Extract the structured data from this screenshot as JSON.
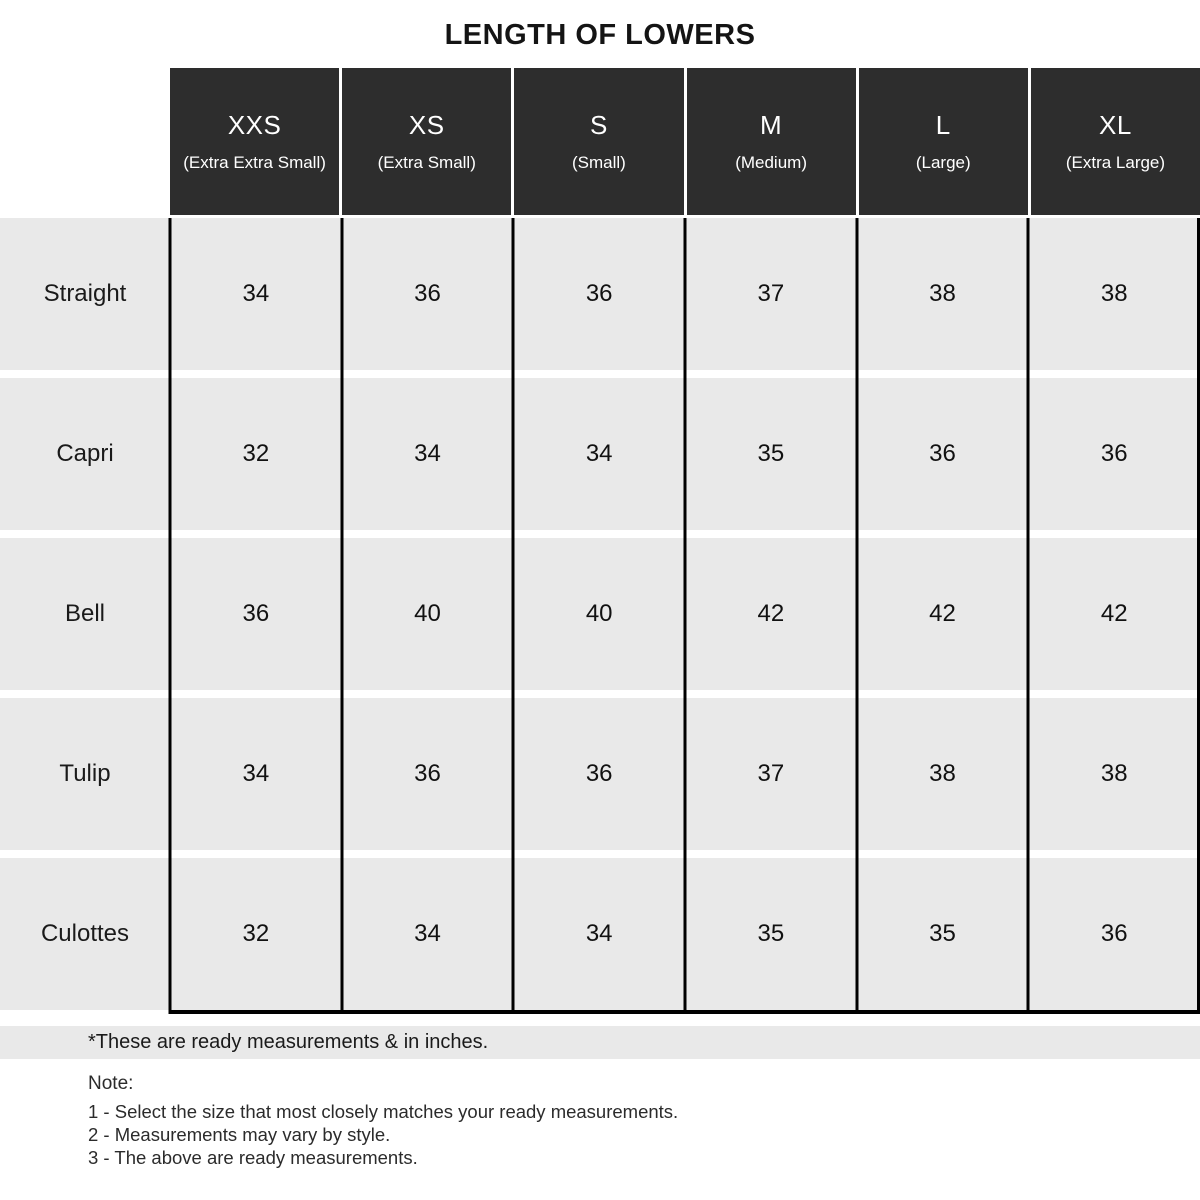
{
  "title": "LENGTH OF LOWERS",
  "table": {
    "columns": [
      {
        "size": "XXS",
        "full": "(Extra Extra Small)"
      },
      {
        "size": "XS",
        "full": "(Extra Small)"
      },
      {
        "size": "S",
        "full": "(Small)"
      },
      {
        "size": "M",
        "full": "(Medium)"
      },
      {
        "size": "L",
        "full": "(Large)"
      },
      {
        "size": "XL",
        "full": "(Extra Large)"
      }
    ],
    "rows": [
      {
        "label": "Straight",
        "values": [
          "34",
          "36",
          "36",
          "37",
          "38",
          "38"
        ]
      },
      {
        "label": "Capri",
        "values": [
          "32",
          "34",
          "34",
          "35",
          "36",
          "36"
        ]
      },
      {
        "label": "Bell",
        "values": [
          "36",
          "40",
          "40",
          "42",
          "42",
          "42"
        ]
      },
      {
        "label": "Tulip",
        "values": [
          "34",
          "36",
          "36",
          "37",
          "38",
          "38"
        ]
      },
      {
        "label": "Culottes",
        "values": [
          "32",
          "34",
          "34",
          "35",
          "35",
          "36"
        ]
      }
    ]
  },
  "footnote": "*These are ready measurements & in inches.",
  "note": {
    "heading": "Note:",
    "items": [
      "1 - Select the size that most closely matches your ready measurements.",
      "2 - Measurements may vary by style.",
      "3 - The above are ready measurements."
    ]
  },
  "colors": {
    "header_bg": "#2d2d2d",
    "header_text": "#ffffff",
    "cell_bg": "#e9e9e9",
    "grid_border": "#000000"
  },
  "chart_data": {
    "type": "table",
    "title": "LENGTH OF LOWERS",
    "unit": "inches",
    "columns": [
      "XXS (Extra Extra Small)",
      "XS (Extra Small)",
      "S (Small)",
      "M (Medium)",
      "L (Large)",
      "XL (Extra Large)"
    ],
    "row_labels": [
      "Straight",
      "Capri",
      "Bell",
      "Tulip",
      "Culottes"
    ],
    "values": [
      [
        34,
        36,
        36,
        37,
        38,
        38
      ],
      [
        32,
        34,
        34,
        35,
        36,
        36
      ],
      [
        36,
        40,
        40,
        42,
        42,
        42
      ],
      [
        34,
        36,
        36,
        37,
        38,
        38
      ],
      [
        32,
        34,
        34,
        35,
        35,
        36
      ]
    ]
  }
}
